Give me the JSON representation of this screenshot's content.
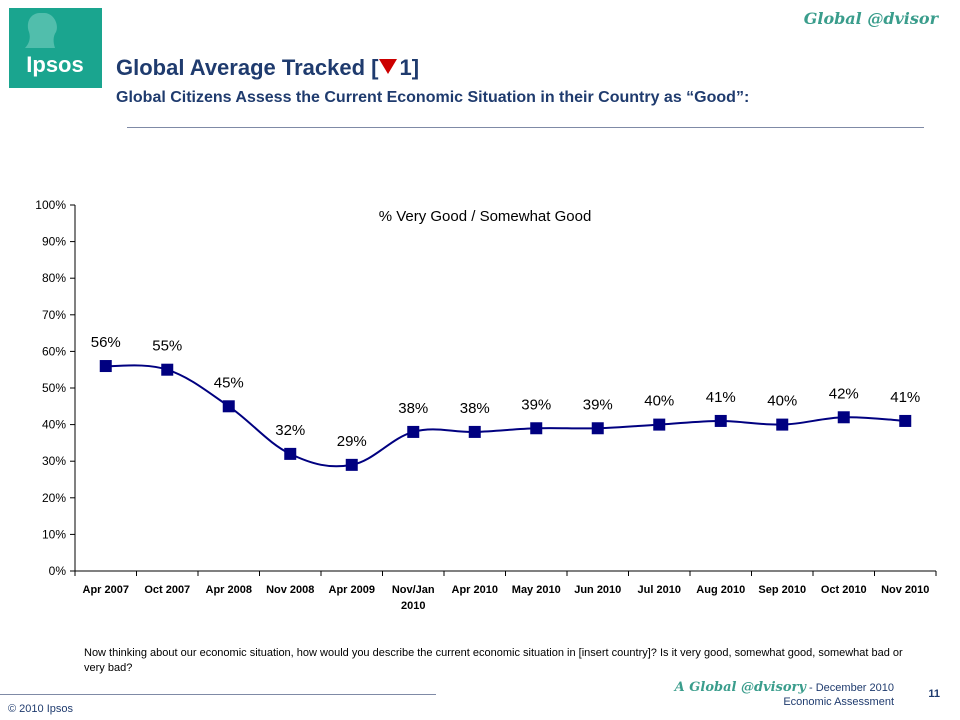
{
  "logo": {
    "text": "Ipsos",
    "color": "#1aa58f"
  },
  "header": {
    "brand": "Global @dvisor",
    "title_prefix": "Global Average Tracked [",
    "title_change": "1",
    "title_suffix": "]",
    "subtitle": "Global Citizens Assess the Current Economic Situation in their Country as “Good”:"
  },
  "chart_data": {
    "type": "line",
    "title": "% Very Good / Somewhat Good",
    "categories": [
      "Apr 2007",
      "Oct 2007",
      "Apr 2008",
      "Nov 2008",
      "Apr 2009",
      "Nov/Jan 2010",
      "Apr 2010",
      "May 2010",
      "Jun 2010",
      "Jul 2010",
      "Aug 2010",
      "Sep 2010",
      "Oct 2010",
      "Nov 2010"
    ],
    "series": [
      {
        "values": [
          56,
          55,
          45,
          32,
          29,
          38,
          38,
          39,
          39,
          40,
          41,
          40,
          42,
          41
        ],
        "color": "#000080"
      }
    ],
    "ylim": [
      0,
      100
    ],
    "yticks": [
      0,
      10,
      20,
      30,
      40,
      50,
      60,
      70,
      80,
      90,
      100
    ],
    "ytick_labels": [
      "0%",
      "10%",
      "20%",
      "30%",
      "40%",
      "50%",
      "60%",
      "70%",
      "80%",
      "90%",
      "100%"
    ],
    "data_labels": [
      "56%",
      "55%",
      "45%",
      "32%",
      "29%",
      "38%",
      "38%",
      "39%",
      "39%",
      "40%",
      "41%",
      "40%",
      "42%",
      "41%"
    ],
    "grid": false,
    "legend": "none",
    "marker": "square"
  },
  "question": "Now thinking about our economic situation, how would you describe the current economic situation in [insert country]? Is it very good, somewhat good, somewhat bad or very bad?",
  "footer": {
    "copyright": "© 2010 Ipsos",
    "brand": "A Global @dvisory",
    "line1_suffix": " - December 2010",
    "line2": "Economic Assessment",
    "page": "11"
  }
}
